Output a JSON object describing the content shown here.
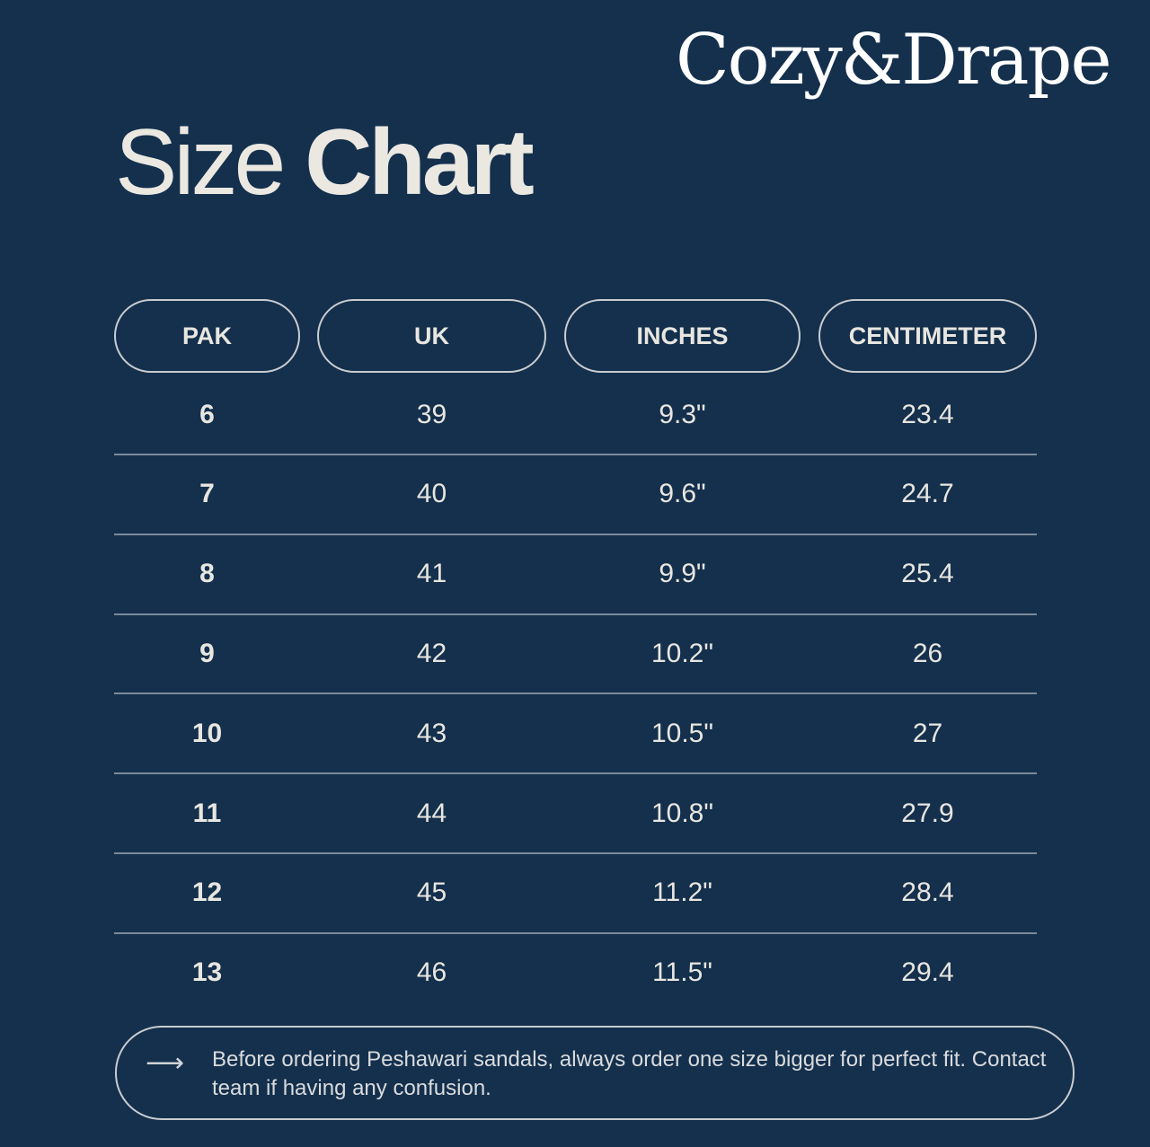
{
  "brand": {
    "logo_text": "Cozy&Drape"
  },
  "title": {
    "light": "Size",
    "bold": "Chart"
  },
  "table": {
    "headers": [
      "PAK",
      "UK",
      "INCHES",
      "CENTIMETER"
    ],
    "rows": [
      [
        "6",
        "39",
        "9.3\"",
        "23.4"
      ],
      [
        "7",
        "40",
        "9.6\"",
        "24.7"
      ],
      [
        "8",
        "41",
        "9.9\"",
        "25.4"
      ],
      [
        "9",
        "42",
        "10.2\"",
        "26"
      ],
      [
        "10",
        "43",
        "10.5\"",
        "27"
      ],
      [
        "11",
        "44",
        "10.8\"",
        "27.9"
      ],
      [
        "12",
        "45",
        "11.2\"",
        "28.4"
      ],
      [
        "13",
        "46",
        "11.5\"",
        "29.4"
      ]
    ]
  },
  "note": {
    "icon": "arrow-right-icon",
    "text": "Before ordering Peshawari sandals, always order one size bigger for perfect fit. Contact team if having any confusion."
  },
  "colors": {
    "background": "#14304d",
    "text": "#e8e6e0",
    "border": "#c9ccd0"
  }
}
